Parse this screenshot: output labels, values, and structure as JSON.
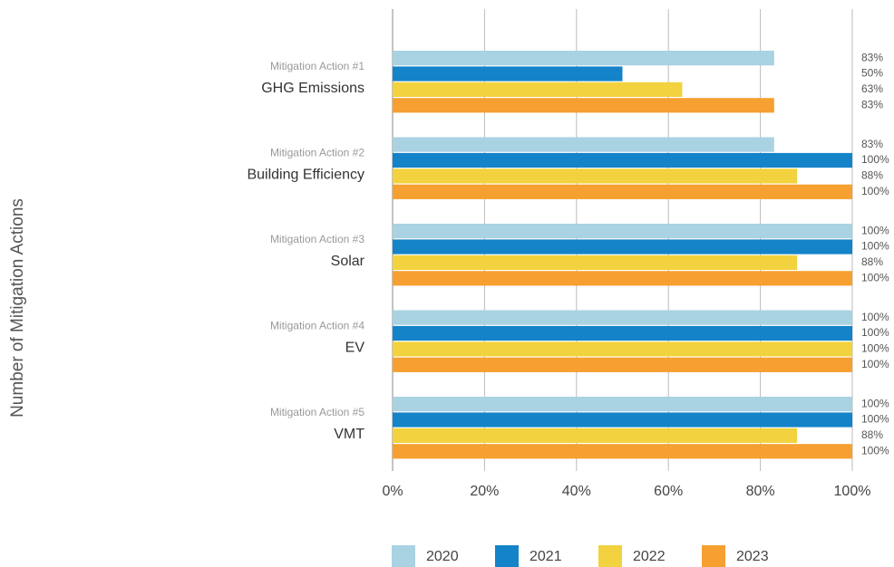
{
  "chart_data": {
    "type": "bar",
    "orientation": "horizontal",
    "y_axis_label": "Number of Mitigation Actions",
    "category_subtitles": [
      "Mitigation Action #1",
      "Mitigation Action #2",
      "Mitigation Action #3",
      "Mitigation Action #4",
      "Mitigation Action #5"
    ],
    "categories": [
      "GHG Emissions",
      "Building Efficiency",
      "Solar",
      "EV",
      "VMT"
    ],
    "series": [
      {
        "name": "2020",
        "color": "#a9d2e2",
        "values": [
          83,
          83,
          100,
          100,
          100
        ],
        "value_labels": [
          "83%",
          "83%",
          "100%",
          "100%",
          "100%"
        ]
      },
      {
        "name": "2021",
        "color": "#1483c8",
        "values": [
          50,
          100,
          100,
          100,
          100
        ],
        "value_labels": [
          "50%",
          "100%",
          "100%",
          "100%",
          "100%"
        ]
      },
      {
        "name": "2022",
        "color": "#f2d23e",
        "values": [
          63,
          88,
          88,
          100,
          88
        ],
        "value_labels": [
          "63%",
          "88%",
          "88%",
          "100%",
          "88%"
        ]
      },
      {
        "name": "2023",
        "color": "#f5a030",
        "values": [
          83,
          100,
          100,
          100,
          100
        ],
        "value_labels": [
          "83%",
          "100%",
          "100%",
          "100%",
          "100%"
        ]
      }
    ],
    "xlim": [
      0,
      100
    ],
    "xticks": [
      {
        "value": 0,
        "label": "0%"
      },
      {
        "value": 20,
        "label": "20%"
      },
      {
        "value": 40,
        "label": "40%"
      },
      {
        "value": 60,
        "label": "60%"
      },
      {
        "value": 80,
        "label": "80%"
      },
      {
        "value": 100,
        "label": "100%"
      }
    ],
    "grid": true,
    "legend": "bottom"
  }
}
